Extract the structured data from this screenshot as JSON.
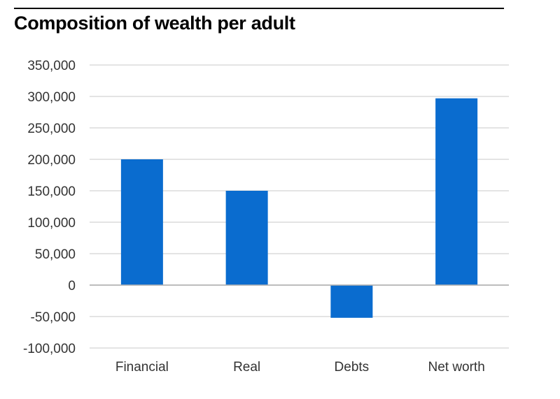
{
  "chart_data": {
    "type": "bar",
    "title": "Composition of wealth per adult",
    "xlabel": "",
    "ylabel": "",
    "categories": [
      "Financial",
      "Real",
      "Debts",
      "Net worth"
    ],
    "values": [
      200000,
      150000,
      -52000,
      297000
    ],
    "ylim": [
      -100000,
      350000
    ],
    "yticks": [
      -100000,
      -50000,
      0,
      50000,
      100000,
      150000,
      200000,
      250000,
      300000,
      350000
    ],
    "ytick_labels": [
      "-100,000",
      "-50,000",
      "0",
      "50,000",
      "100,000",
      "150,000",
      "200,000",
      "250,000",
      "300,000",
      "350,000"
    ],
    "grid": true,
    "legend": "none",
    "colors": {
      "bar": "#0a6ccf",
      "grid": "#c8c8c8",
      "zero_line": "#b4b4b4",
      "text": "#333333"
    }
  }
}
